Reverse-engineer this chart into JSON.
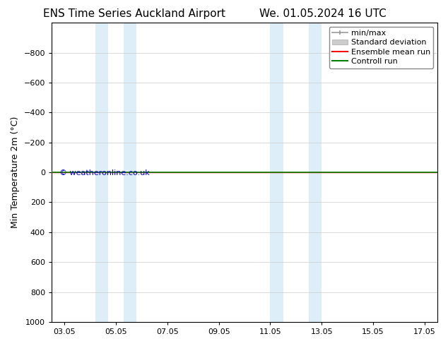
{
  "title_left": "ENS Time Series Auckland Airport",
  "title_right": "We. 01.05.2024 16 UTC",
  "ylabel": "Min Temperature 2m (°C)",
  "ylim_bottom": -1000,
  "ylim_top": 1000,
  "yticks": [
    -800,
    -600,
    -400,
    -200,
    0,
    200,
    400,
    600,
    800,
    1000
  ],
  "x_labels": [
    "03.05",
    "05.05",
    "07.05",
    "09.05",
    "11.05",
    "13.05",
    "15.05",
    "17.05"
  ],
  "x_numeric": [
    3,
    5,
    7,
    9,
    11,
    13,
    15,
    17
  ],
  "x_min": 2.5,
  "x_max": 17.5,
  "background_color": "#ffffff",
  "plot_bg_color": "#ffffff",
  "shaded_bands": [
    {
      "x_start": 4.2,
      "x_end": 4.7
    },
    {
      "x_start": 5.3,
      "x_end": 5.8
    },
    {
      "x_start": 11.0,
      "x_end": 11.5
    },
    {
      "x_start": 12.5,
      "x_end": 13.0
    }
  ],
  "shaded_color": "#ddeef8",
  "horizontal_line_y": 0,
  "ensemble_mean_color": "#ff0000",
  "control_run_color": "#008000",
  "minmax_color": "#999999",
  "stddev_color": "#cccccc",
  "watermark_text": "© weatheronline.co.uk",
  "watermark_color": "#0000cc",
  "legend_entries": [
    "min/max",
    "Standard deviation",
    "Ensemble mean run",
    "Controll run"
  ],
  "legend_colors": [
    "#999999",
    "#cccccc",
    "#ff0000",
    "#008000"
  ],
  "title_fontsize": 11,
  "axis_label_fontsize": 9,
  "tick_fontsize": 8,
  "legend_fontsize": 8
}
